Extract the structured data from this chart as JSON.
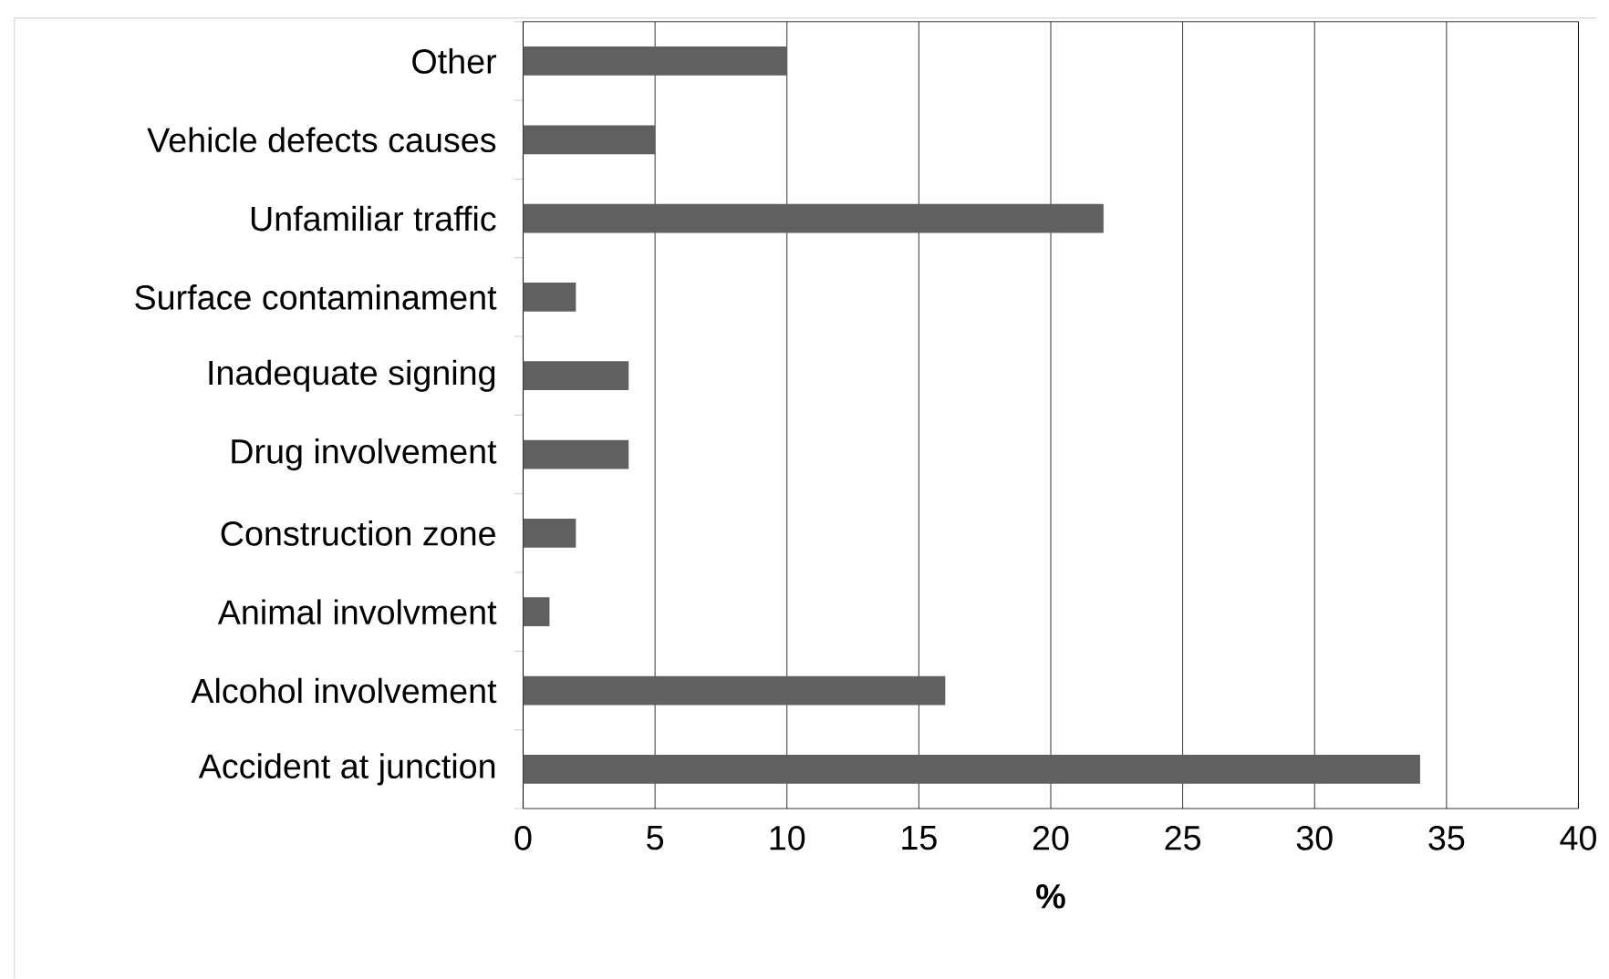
{
  "chart_data": {
    "type": "bar",
    "orientation": "horizontal",
    "xlabel": "**%**",
    "categories": [
      "Other",
      "Vehicle defects causes",
      "Unfamiliar traffic",
      "Surface contaminament",
      "Inadequate signing",
      "Drug involvement",
      "Construction zone",
      "Animal involvment",
      "Alcohol involvement",
      "Accident at junction"
    ],
    "values": [
      10,
      5,
      22,
      2,
      4,
      4,
      2,
      1,
      16,
      34
    ],
    "color": "#606060",
    "xlim": [
      0,
      40
    ],
    "xticks": [
      0,
      5,
      10,
      15,
      20,
      25,
      30,
      35,
      40
    ],
    "grid": "x"
  }
}
